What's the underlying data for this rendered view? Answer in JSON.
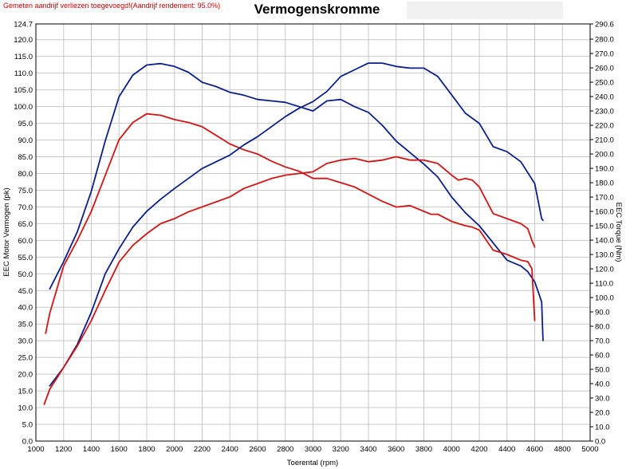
{
  "header": {
    "title": "Vermogenskromme",
    "note": "Gemeten aandrijf verliezen toegevoegd!(Aandrijf rendement: 95.0%)"
  },
  "colors": {
    "blue": "#0a1f8c",
    "red": "#d41414",
    "grid": "#c8c8c8"
  },
  "chart_data": {
    "type": "line",
    "title": "Vermogenskromme",
    "xlabel": "Toerental (rpm)",
    "ylabel_left": "EEC Motor Vermogen (pk)",
    "ylabel_right": "EEC Torque (Nm)",
    "xlim": [
      1000,
      5000
    ],
    "ylim_left": [
      0,
      124.7
    ],
    "ylim_right": [
      0,
      290.6
    ],
    "grid": true,
    "x_ticks": [
      "1000",
      "1200",
      "1400",
      "1600",
      "1800",
      "2000",
      "2200",
      "2400",
      "2600",
      "2800",
      "3000",
      "3200",
      "3400",
      "3600",
      "3800",
      "4000",
      "4200",
      "4400",
      "4600",
      "4800",
      "5000"
    ],
    "y_left_ticks": [
      "0.0",
      "5.0",
      "10.0",
      "15.0",
      "20.0",
      "25.0",
      "30.0",
      "35.0",
      "40.0",
      "45.0",
      "50.0",
      "55.0",
      "60.0",
      "65.0",
      "70.0",
      "75.0",
      "80.0",
      "85.0",
      "90.0",
      "95.0",
      "100.0",
      "105.0",
      "110.0",
      "115.0",
      "120.0",
      "124.7"
    ],
    "y_right_ticks": [
      "0.0",
      "10.0",
      "20.0",
      "30.0",
      "40.0",
      "50.0",
      "60.0",
      "70.0",
      "80.0",
      "90.0",
      "100.0",
      "110.0",
      "120.0",
      "130.0",
      "140.0",
      "150.0",
      "160.0",
      "170.0",
      "180.0",
      "190.0",
      "200.0",
      "210.0",
      "220.0",
      "230.0",
      "240.0",
      "250.0",
      "260.0",
      "270.0",
      "280.0",
      "290.6"
    ],
    "series": [
      {
        "color": "blue",
        "axis": "right",
        "x": [
          1100,
          1200,
          1300,
          1400,
          1500,
          1600,
          1700,
          1800,
          1900,
          2000,
          2100,
          2200,
          2300,
          2400,
          2500,
          2600,
          2700,
          2800,
          2900,
          3000,
          3100,
          3200,
          3300,
          3400,
          3500,
          3600,
          3700,
          3800,
          3900,
          4000,
          4100,
          4200,
          4300,
          4400,
          4500,
          4550,
          4600,
          4650,
          4660
        ],
        "y": [
          106,
          125,
          146,
          174,
          209,
          240,
          255,
          262,
          263,
          261,
          257,
          250,
          247,
          243,
          241,
          238,
          237,
          236,
          233,
          230,
          237,
          238,
          233,
          229,
          220,
          209,
          201,
          193,
          184,
          170,
          159,
          150,
          138,
          126,
          122,
          118,
          111,
          97,
          70
        ]
      },
      {
        "color": "red",
        "axis": "right",
        "x": [
          1070,
          1100,
          1200,
          1300,
          1400,
          1500,
          1600,
          1700,
          1800,
          1900,
          2000,
          2100,
          2200,
          2300,
          2400,
          2500,
          2600,
          2700,
          2800,
          2900,
          3000,
          3100,
          3200,
          3300,
          3400,
          3500,
          3600,
          3700,
          3800,
          3850,
          3900,
          4000,
          4100,
          4150,
          4200,
          4300,
          4400,
          4500,
          4550,
          4580,
          4600
        ],
        "y": [
          75,
          89,
          122,
          140,
          160,
          185,
          210,
          222,
          228,
          227,
          224,
          222,
          219,
          213,
          207,
          203,
          200,
          195,
          191,
          188,
          183,
          183,
          180,
          177,
          172,
          167,
          163,
          164,
          160,
          158,
          158,
          153,
          150,
          149,
          147,
          133,
          130,
          126,
          125,
          120,
          84
        ]
      },
      {
        "color": "blue",
        "axis": "left",
        "x": [
          1100,
          1200,
          1300,
          1400,
          1500,
          1600,
          1700,
          1800,
          1900,
          2000,
          2100,
          2200,
          2300,
          2400,
          2500,
          2600,
          2700,
          2800,
          2900,
          3000,
          3100,
          3200,
          3300,
          3400,
          3500,
          3600,
          3700,
          3800,
          3900,
          4000,
          4100,
          4200,
          4300,
          4400,
          4500,
          4600,
          4650,
          4660
        ],
        "y": [
          16.5,
          22,
          29,
          38.5,
          50,
          57.5,
          64,
          68.7,
          72.3,
          75.5,
          78.5,
          81.5,
          83.5,
          85.5,
          88.5,
          91,
          94,
          97,
          99.5,
          101.5,
          104.5,
          109,
          111,
          113,
          113,
          112,
          111.5,
          111.5,
          109,
          103.5,
          98,
          95,
          88,
          86.5,
          83.5,
          77,
          66.5,
          66
        ]
      },
      {
        "color": "red",
        "axis": "left",
        "x": [
          1060,
          1100,
          1200,
          1300,
          1400,
          1500,
          1600,
          1700,
          1800,
          1900,
          2000,
          2100,
          2200,
          2300,
          2400,
          2500,
          2600,
          2700,
          2800,
          2900,
          3000,
          3100,
          3200,
          3300,
          3400,
          3500,
          3600,
          3700,
          3800,
          3900,
          4000,
          4050,
          4100,
          4150,
          4200,
          4300,
          4400,
          4500,
          4550,
          4580,
          4600
        ],
        "y": [
          11,
          15.5,
          22,
          28.5,
          36,
          45,
          53.5,
          58.5,
          62,
          65,
          66.5,
          68.5,
          70,
          71.5,
          73,
          75.5,
          77,
          78.5,
          79.5,
          80,
          80.5,
          83,
          84,
          84.5,
          83.5,
          84,
          85,
          84,
          84,
          83,
          79.5,
          78,
          78.5,
          78,
          76,
          68,
          66.5,
          65,
          63.5,
          60,
          58
        ]
      }
    ]
  }
}
